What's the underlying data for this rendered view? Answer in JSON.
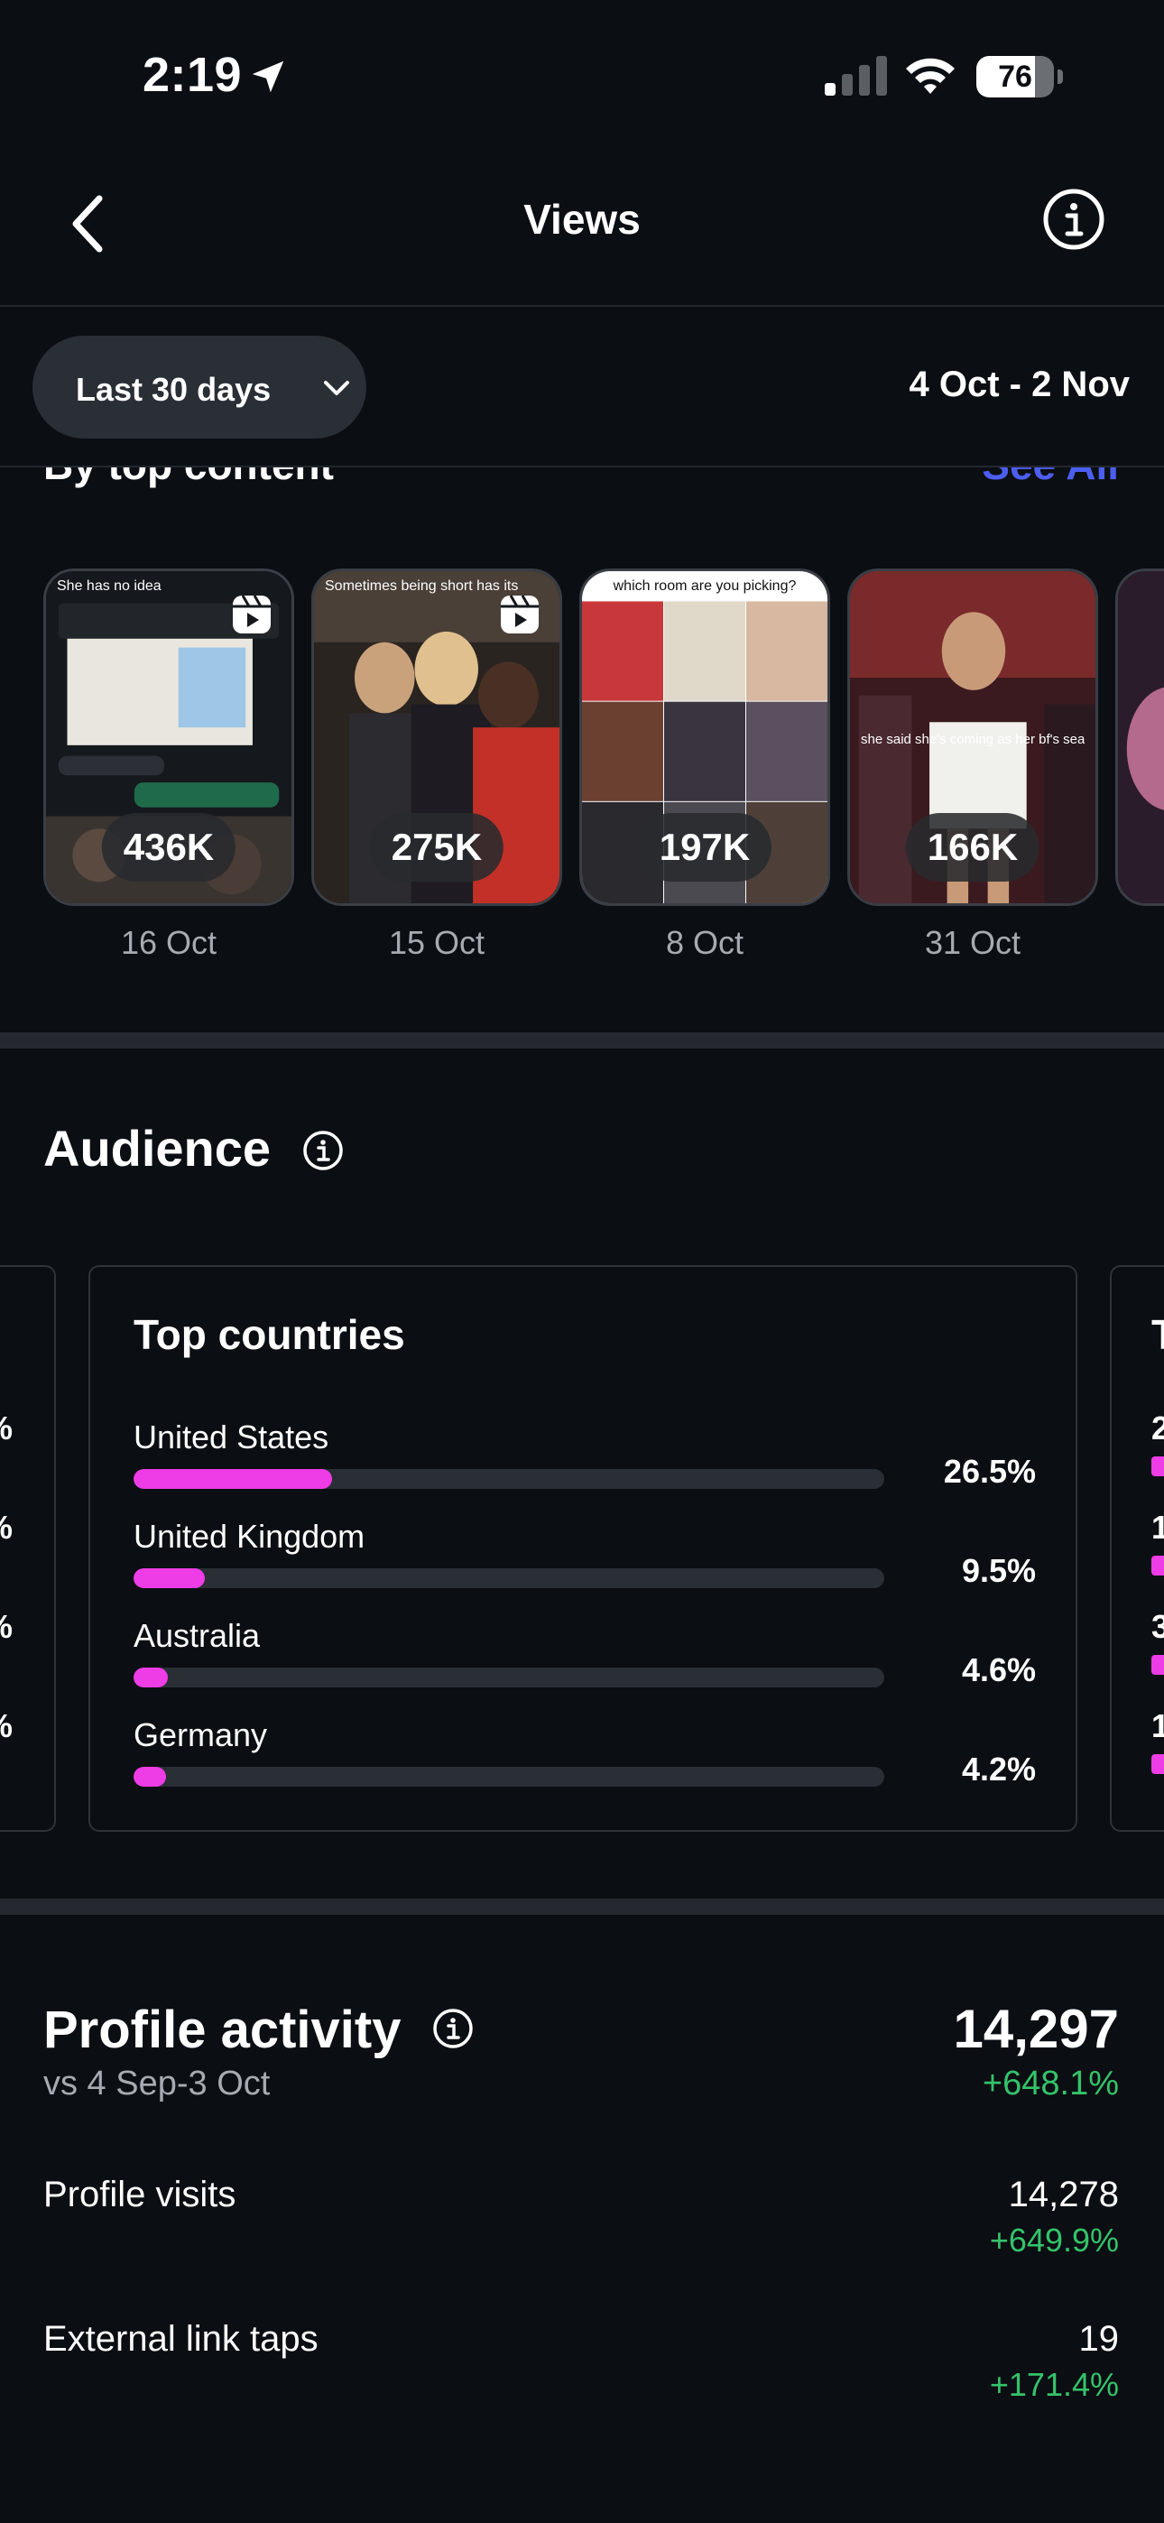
{
  "status_bar": {
    "time": "2:19",
    "battery": "76",
    "battery_level": 0.76,
    "icons": [
      "location-arrow-icon",
      "cellular-signal-icon",
      "wifi-icon",
      "battery-icon"
    ]
  },
  "nav": {
    "title": "Views",
    "back_icon": "chevron-left-icon",
    "info_icon": "info-icon"
  },
  "filter": {
    "range_label": "Last 30 days",
    "date_range": "4 Oct - 2 Nov"
  },
  "top_content": {
    "title": "By top content",
    "see_all": "See All",
    "items": [
      {
        "count": "436K",
        "date": "16 Oct",
        "caption": "She has no idea"
      },
      {
        "count": "275K",
        "date": "15 Oct",
        "caption": "Sometimes being short has its"
      },
      {
        "count": "197K",
        "date": "8 Oct",
        "caption": "which room are you picking?"
      },
      {
        "count": "166K",
        "date": "31 Oct",
        "caption": "she said she's coming as her bf's search history"
      }
    ]
  },
  "audience": {
    "title": "Audience",
    "top_countries": {
      "title": "Top countries",
      "rows": [
        {
          "name": "United States",
          "pct": "26.5%",
          "value": 26.5
        },
        {
          "name": "United Kingdom",
          "pct": "9.5%",
          "value": 9.5
        },
        {
          "name": "Australia",
          "pct": "4.6%",
          "value": 4.6
        },
        {
          "name": "Germany",
          "pct": "4.2%",
          "value": 4.2
        }
      ]
    }
  },
  "profile_activity": {
    "title": "Profile activity",
    "subtitle": "vs 4 Sep-3 Oct",
    "total": "14,297",
    "total_change": "+648.1%",
    "rows": [
      {
        "label": "Profile visits",
        "value": "14,278",
        "change": "+649.9%"
      },
      {
        "label": "External link taps",
        "value": "19",
        "change": "+171.4%"
      }
    ]
  },
  "colors": {
    "background": "#0b0e12",
    "accent_bar": "#ee3ce6",
    "positive": "#34c36b",
    "link": "#4c5ef0"
  }
}
